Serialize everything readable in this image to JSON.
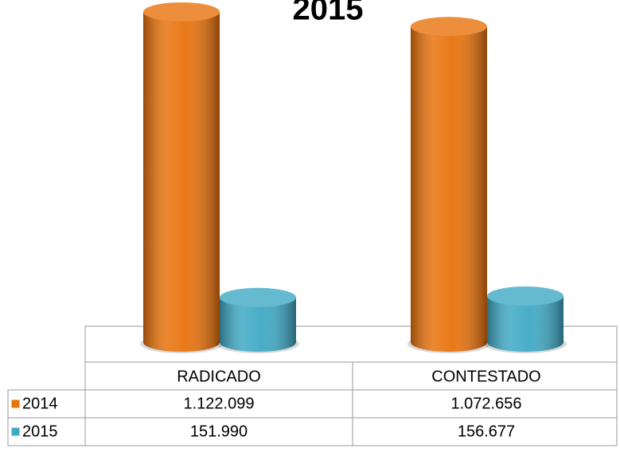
{
  "chart_data": {
    "type": "bar",
    "title": "2015",
    "categories": [
      "RADICADO",
      "CONTESTADO"
    ],
    "series": [
      {
        "name": "2014",
        "color": "#e8720c",
        "values": [
          1122099,
          1072656
        ],
        "value_labels": [
          "1.122.099",
          "1.072.656"
        ]
      },
      {
        "name": "2015",
        "color": "#3fa9c5",
        "values": [
          151990,
          156677
        ],
        "value_labels": [
          "151.990",
          "156.677"
        ]
      }
    ]
  }
}
